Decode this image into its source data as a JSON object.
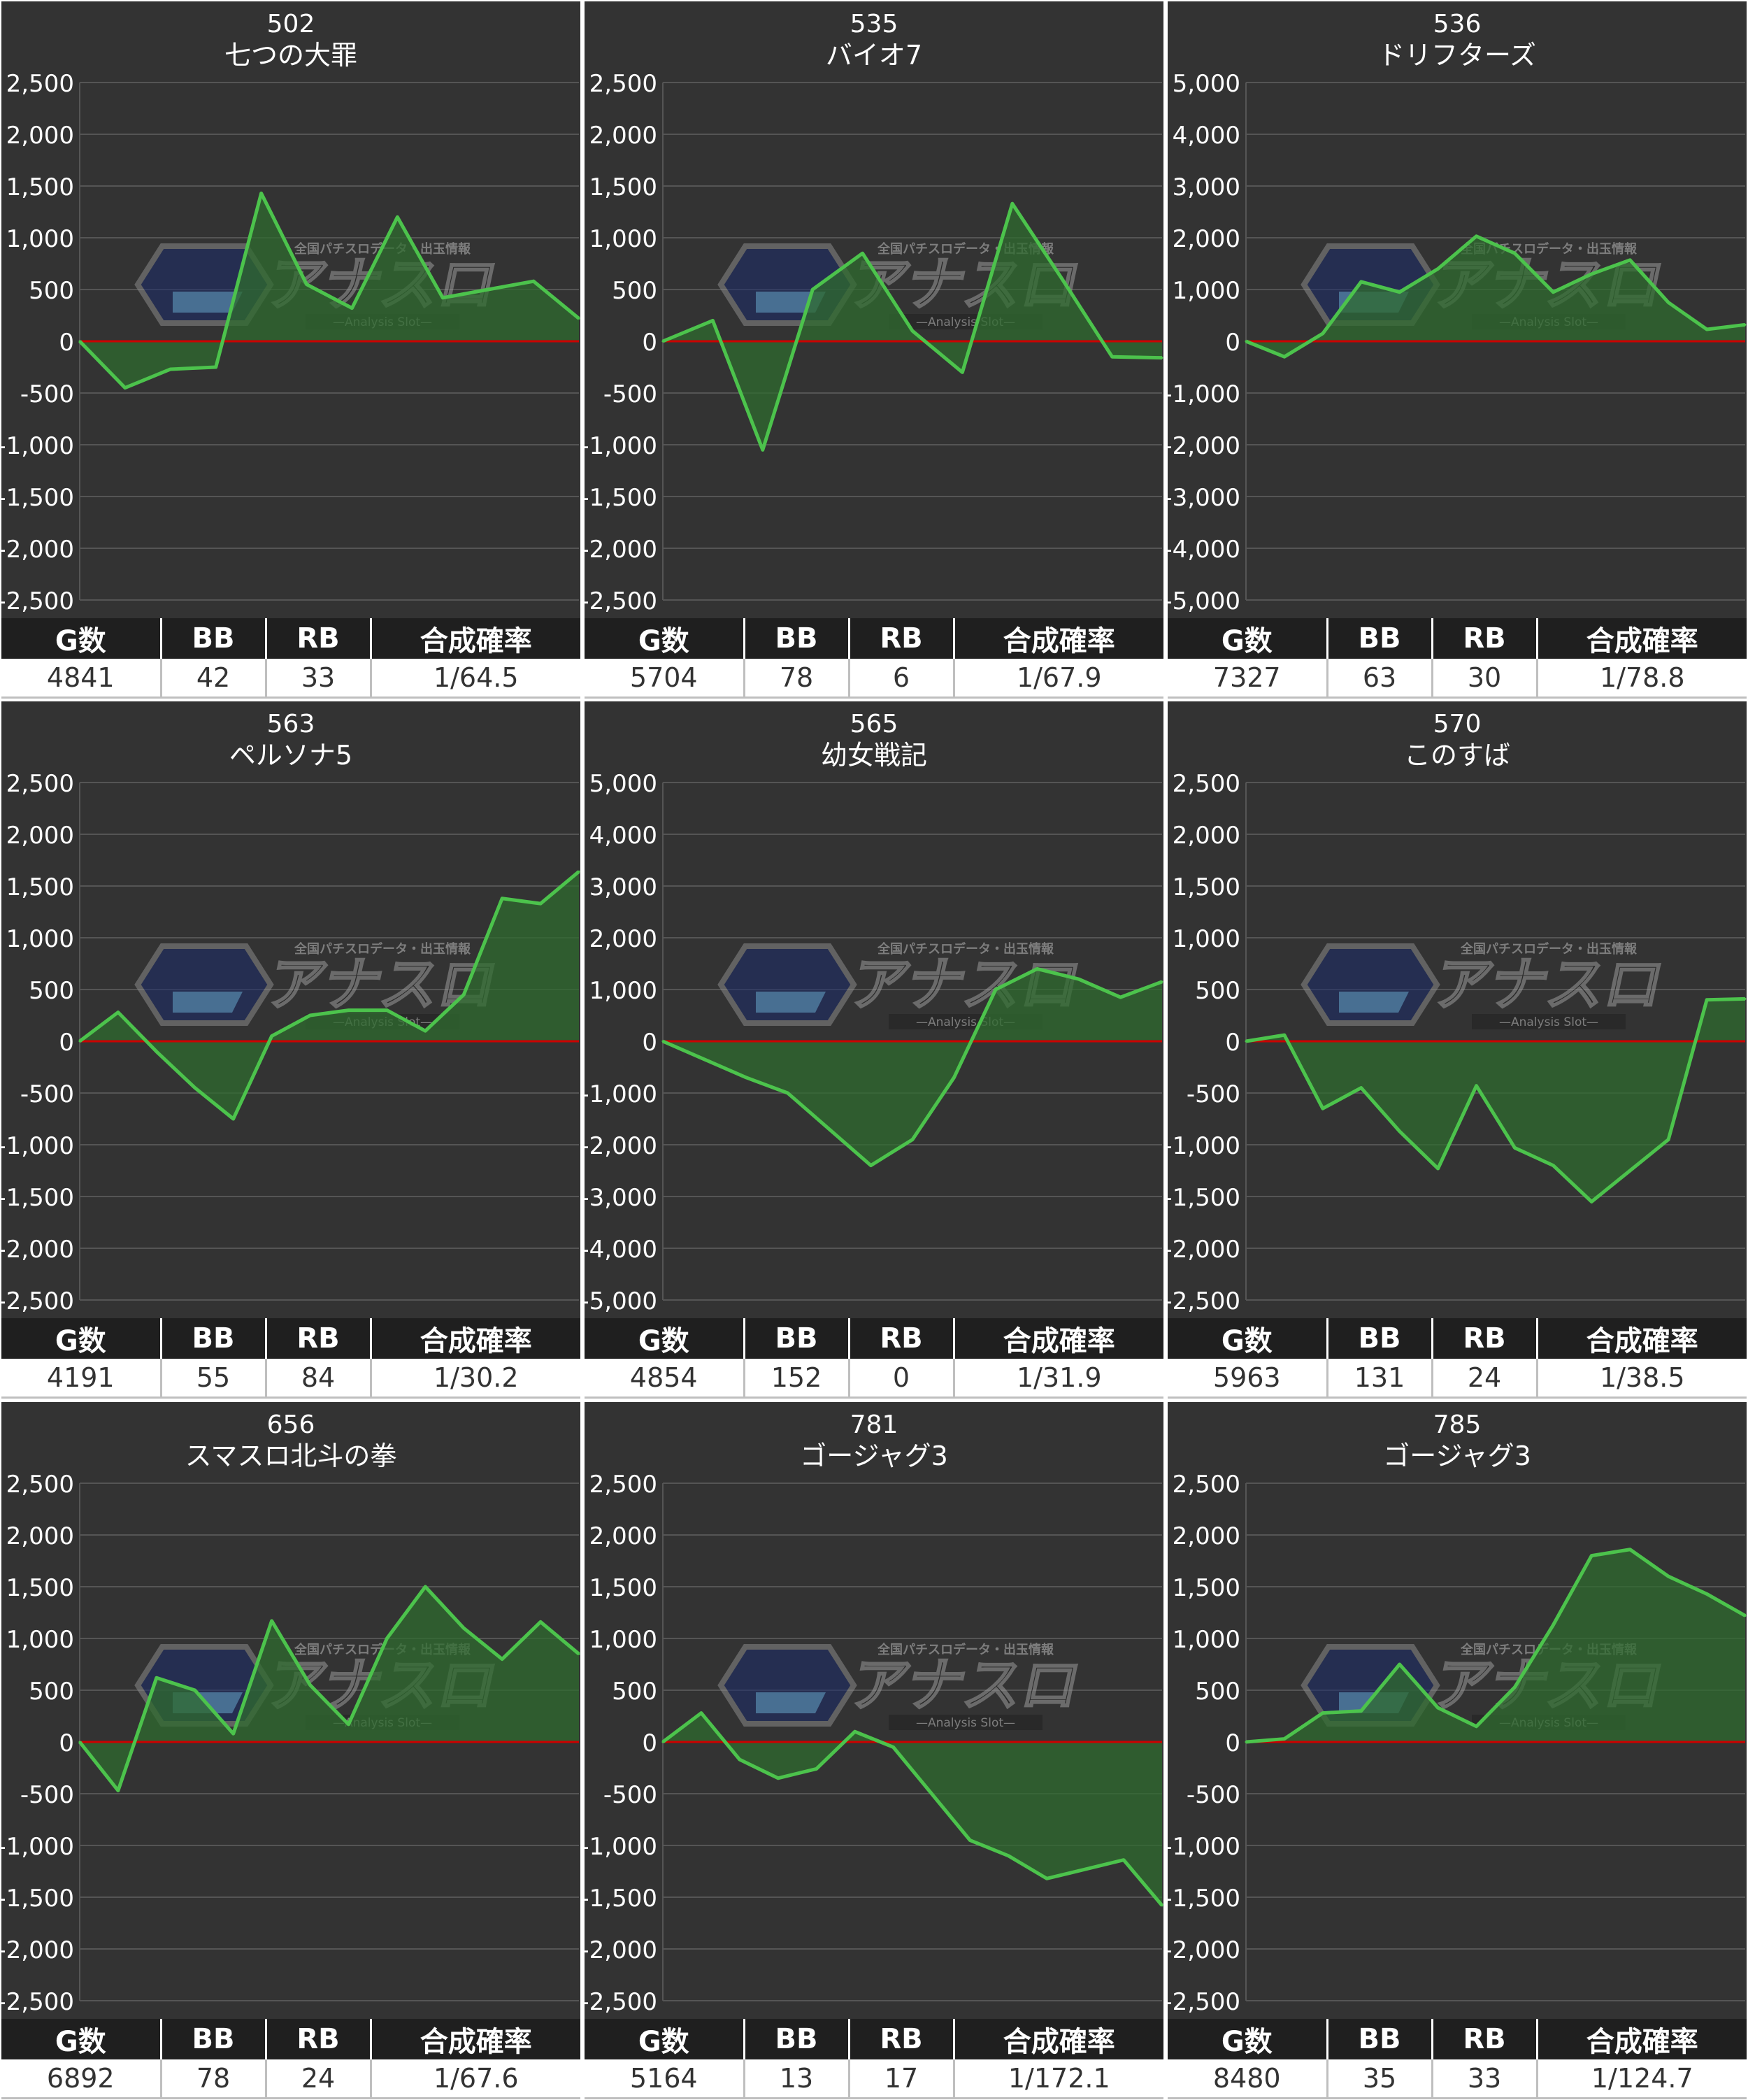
{
  "colors": {
    "background": "#333333",
    "gridline": "#555555",
    "zero_line": "#cc0000",
    "series_line": "#4cc34c",
    "series_fill": "#2f6b2f",
    "axis_text": "#ffffff",
    "stat_header_bg": "#1f1f1f",
    "stat_header_text": "#ffffff",
    "stat_value_text": "#333333"
  },
  "watermark": {
    "text": "アナスロ",
    "tagline": "全国パチスロデータ・出玉情報",
    "subtext": "—Analysis Slot—"
  },
  "stat_headers": [
    "G数",
    "BB",
    "RB",
    "合成確率"
  ],
  "chart_data": [
    {
      "type": "area",
      "machine_no": "502",
      "machine_name": "七つの大罪",
      "yticks": [
        "2,500",
        "2,000",
        "1,500",
        "1,000",
        "500",
        "0",
        "-500",
        "-1,000",
        "-1,500",
        "-2,000",
        "-2,500"
      ],
      "ylim": [
        -2500,
        2500
      ],
      "y": [
        0,
        -450,
        -270,
        -250,
        1430,
        550,
        320,
        1200,
        420,
        500,
        580,
        220
      ],
      "stats": {
        "games": "4841",
        "bb": "42",
        "rb": "33",
        "prob": "1/64.5"
      }
    },
    {
      "type": "area",
      "machine_no": "535",
      "machine_name": "バイオ7",
      "yticks": [
        "2,500",
        "2,000",
        "1,500",
        "1,000",
        "500",
        "0",
        "-500",
        "-1,000",
        "-1,500",
        "-2,000",
        "-2,500"
      ],
      "ylim": [
        -2500,
        2500
      ],
      "y": [
        0,
        200,
        -1050,
        500,
        850,
        100,
        -300,
        1330,
        600,
        -150,
        -160
      ],
      "stats": {
        "games": "5704",
        "bb": "78",
        "rb": "6",
        "prob": "1/67.9"
      }
    },
    {
      "type": "area",
      "machine_no": "536",
      "machine_name": "ドリフターズ",
      "yticks": [
        "5,000",
        "4,000",
        "3,000",
        "2,000",
        "1,000",
        "0",
        "-1,000",
        "-2,000",
        "-3,000",
        "-4,000",
        "-5,000"
      ],
      "ylim": [
        -5000,
        5000
      ],
      "y": [
        0,
        -300,
        150,
        1150,
        950,
        1400,
        2030,
        1700,
        950,
        1300,
        1570,
        750,
        230,
        320
      ],
      "stats": {
        "games": "7327",
        "bb": "63",
        "rb": "30",
        "prob": "1/78.8"
      }
    },
    {
      "type": "area",
      "machine_no": "563",
      "machine_name": "ペルソナ5",
      "yticks": [
        "2,500",
        "2,000",
        "1,500",
        "1,000",
        "500",
        "0",
        "-500",
        "-1,000",
        "-1,500",
        "-2,000",
        "-2,500"
      ],
      "ylim": [
        -2500,
        2500
      ],
      "y": [
        0,
        280,
        -100,
        -450,
        -750,
        50,
        250,
        300,
        300,
        100,
        450,
        1380,
        1330,
        1640
      ],
      "stats": {
        "games": "4191",
        "bb": "55",
        "rb": "84",
        "prob": "1/30.2"
      }
    },
    {
      "type": "area",
      "machine_no": "565",
      "machine_name": "幼女戦記",
      "yticks": [
        "5,000",
        "4,000",
        "3,000",
        "2,000",
        "1,000",
        "0",
        "-1,000",
        "-2,000",
        "-3,000",
        "-4,000",
        "-5,000"
      ],
      "ylim": [
        -5000,
        5000
      ],
      "y": [
        0,
        -350,
        -700,
        -1000,
        -1700,
        -2400,
        -1900,
        -700,
        1000,
        1400,
        1200,
        850,
        1150
      ],
      "stats": {
        "games": "4854",
        "bb": "152",
        "rb": "0",
        "prob": "1/31.9"
      }
    },
    {
      "type": "area",
      "machine_no": "570",
      "machine_name": "このすば",
      "yticks": [
        "2,500",
        "2,000",
        "1,500",
        "1,000",
        "500",
        "0",
        "-500",
        "-1,000",
        "-1,500",
        "-2,000",
        "-2,500"
      ],
      "ylim": [
        -2500,
        2500
      ],
      "y": [
        0,
        60,
        -650,
        -450,
        -870,
        -1230,
        -430,
        -1030,
        -1200,
        -1550,
        -1250,
        -950,
        400,
        410
      ],
      "stats": {
        "games": "5963",
        "bb": "131",
        "rb": "24",
        "prob": "1/38.5"
      }
    },
    {
      "type": "area",
      "machine_no": "656",
      "machine_name": "スマスロ北斗の拳",
      "yticks": [
        "2,500",
        "2,000",
        "1,500",
        "1,000",
        "500",
        "0",
        "-500",
        "-1,000",
        "-1,500",
        "-2,000",
        "-2,500"
      ],
      "ylim": [
        -2500,
        2500
      ],
      "y": [
        0,
        -470,
        620,
        500,
        80,
        1170,
        550,
        170,
        1000,
        1500,
        1100,
        800,
        1160,
        850
      ],
      "stats": {
        "games": "6892",
        "bb": "78",
        "rb": "24",
        "prob": "1/67.6"
      }
    },
    {
      "type": "area",
      "machine_no": "781",
      "machine_name": "ゴージャグ3",
      "yticks": [
        "2,500",
        "2,000",
        "1,500",
        "1,000",
        "500",
        "0",
        "-500",
        "-1,000",
        "-1,500",
        "-2,000",
        "-2,500"
      ],
      "ylim": [
        -2500,
        2500
      ],
      "y": [
        0,
        280,
        -170,
        -350,
        -260,
        100,
        -50,
        -500,
        -950,
        -1100,
        -1320,
        -1230,
        -1140,
        -1580
      ],
      "stats": {
        "games": "5164",
        "bb": "13",
        "rb": "17",
        "prob": "1/172.1"
      }
    },
    {
      "type": "area",
      "machine_no": "785",
      "machine_name": "ゴージャグ3",
      "yticks": [
        "2,500",
        "2,000",
        "1,500",
        "1,000",
        "500",
        "0",
        "-500",
        "-1,000",
        "-1,500",
        "-2,000",
        "-2,500"
      ],
      "ylim": [
        -2500,
        2500
      ],
      "y": [
        0,
        30,
        280,
        300,
        750,
        330,
        150,
        530,
        1130,
        1800,
        1860,
        1600,
        1430,
        1220
      ],
      "stats": {
        "games": "8480",
        "bb": "35",
        "rb": "33",
        "prob": "1/124.7"
      }
    }
  ]
}
